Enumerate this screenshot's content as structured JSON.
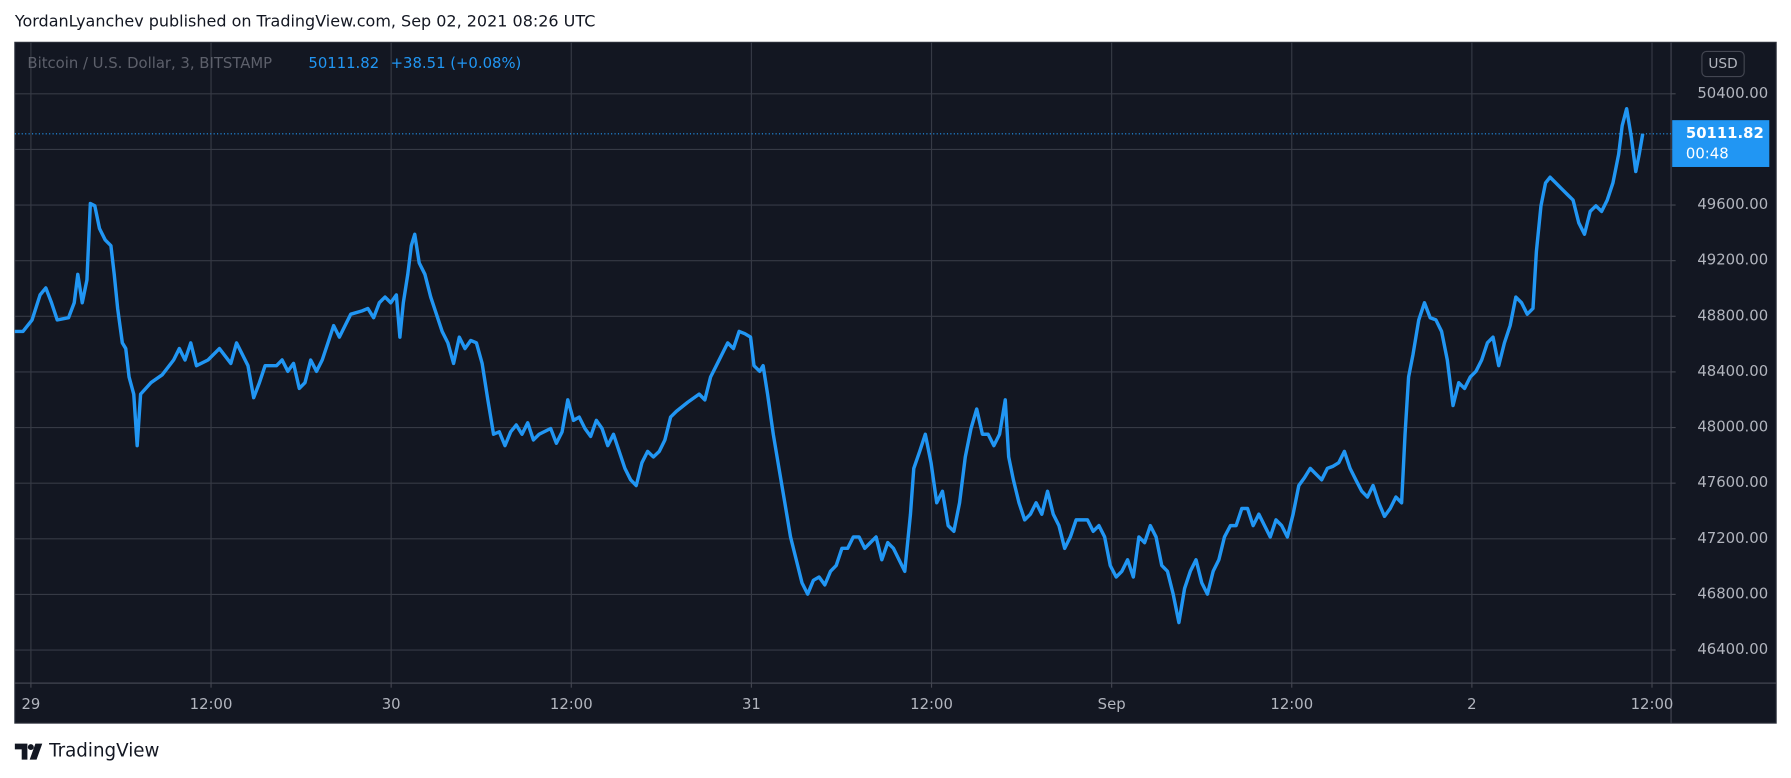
{
  "header": {
    "attribution": "YordanLyanchev published on TradingView.com, Sep 02, 2021 08:26 UTC"
  },
  "chart_data": {
    "type": "line",
    "title": "Bitcoin / U.S. Dollar, 3, BITSTAMP",
    "last_price": 50111.82,
    "change": "+38.51 (+0.08%)",
    "currency": "USD",
    "countdown": "00:48",
    "color": "#2196f3",
    "grid": true,
    "xlim": [
      -1.07,
      109.27
    ],
    "xticks": [
      {
        "value": 0,
        "label": "29"
      },
      {
        "value": 12,
        "label": "12:00"
      },
      {
        "value": 24,
        "label": "30"
      },
      {
        "value": 36,
        "label": "12:00"
      },
      {
        "value": 48,
        "label": "31"
      },
      {
        "value": 60,
        "label": "12:00"
      },
      {
        "value": 72,
        "label": "Sep"
      },
      {
        "value": 84,
        "label": "12:00"
      },
      {
        "value": 96,
        "label": "2"
      },
      {
        "value": 108,
        "label": "12:00"
      }
    ],
    "ylim": [
      46162,
      50770
    ],
    "yticks": [
      {
        "value": 46400,
        "label": "46400.00"
      },
      {
        "value": 46800,
        "label": "46800.00"
      },
      {
        "value": 47200,
        "label": "47200.00"
      },
      {
        "value": 47600,
        "label": "47600.00"
      },
      {
        "value": 48000,
        "label": "48000.00"
      },
      {
        "value": 48400,
        "label": "48400.00"
      },
      {
        "value": 48800,
        "label": "48800.00"
      },
      {
        "value": 49200,
        "label": "49200.00"
      },
      {
        "value": 49600,
        "label": "49600.00"
      },
      {
        "value": 50000,
        "label": "50000.00"
      },
      {
        "value": 50400,
        "label": "50400.00"
      }
    ],
    "x": [
      -1.07,
      -0.53,
      0.08,
      0.61,
      0.99,
      1.37,
      1.75,
      2.51,
      2.89,
      3.12,
      3.42,
      3.73,
      3.96,
      4.26,
      4.57,
      4.95,
      5.33,
      5.55,
      5.78,
      6.09,
      6.32,
      6.54,
      6.85,
      7.08,
      7.31,
      7.99,
      8.75,
      9.51,
      9.89,
      10.27,
      10.65,
      11.03,
      11.8,
      12.56,
      13.32,
      13.7,
      14.08,
      14.46,
      14.84,
      15.22,
      15.6,
      16.36,
      16.74,
      17.12,
      17.5,
      17.88,
      18.26,
      18.64,
      19.03,
      19.41,
      19.79,
      20.17,
      20.55,
      20.93,
      21.31,
      22.07,
      22.45,
      22.83,
      23.21,
      23.59,
      23.97,
      24.35,
      24.58,
      24.81,
      25.11,
      25.34,
      25.57,
      25.87,
      26.25,
      26.64,
      27.02,
      27.4,
      27.78,
      28.16,
      28.54,
      28.92,
      29.3,
      29.68,
      30.06,
      30.44,
      30.82,
      31.2,
      31.58,
      31.96,
      32.34,
      32.72,
      33.1,
      33.48,
      33.86,
      34.63,
      35.01,
      35.39,
      35.77,
      36.15,
      36.53,
      36.91,
      37.29,
      37.67,
      38.05,
      38.43,
      38.81,
      39.19,
      39.57,
      39.95,
      40.33,
      40.71,
      41.09,
      41.47,
      41.86,
      42.24,
      42.62,
      43.0,
      43.76,
      44.52,
      44.9,
      45.28,
      45.66,
      46.04,
      46.42,
      46.8,
      47.18,
      47.56,
      47.94,
      48.17,
      48.55,
      48.78,
      49.08,
      49.46,
      49.84,
      50.23,
      50.61,
      50.99,
      51.37,
      51.75,
      52.13,
      52.51,
      52.89,
      53.27,
      53.65,
      54.03,
      54.41,
      54.79,
      55.17,
      55.55,
      55.93,
      56.31,
      56.69,
      57.08,
      57.46,
      57.84,
      58.22,
      58.6,
      58.82,
      59.21,
      59.59,
      59.97,
      60.35,
      60.73,
      61.11,
      61.49,
      61.87,
      62.25,
      62.63,
      63.01,
      63.39,
      63.77,
      64.15,
      64.53,
      64.91,
      65.14,
      65.45,
      65.83,
      66.21,
      66.59,
      66.97,
      67.35,
      67.73,
      68.11,
      68.49,
      68.87,
      69.25,
      69.63,
      70.39,
      70.77,
      71.15,
      71.53,
      71.91,
      72.3,
      72.68,
      73.06,
      73.44,
      73.82,
      74.2,
      74.58,
      74.96,
      75.34,
      75.72,
      76.1,
      76.48,
      76.86,
      77.24,
      77.62,
      78.0,
      78.38,
      78.76,
      79.14,
      79.52,
      79.91,
      80.29,
      80.67,
      81.05,
      81.43,
      81.81,
      82.19,
      82.57,
      82.95,
      83.33,
      83.71,
      84.09,
      84.47,
      84.85,
      85.23,
      85.61,
      85.99,
      86.37,
      86.75,
      87.13,
      87.51,
      87.89,
      88.27,
      88.66,
      89.04,
      89.42,
      89.8,
      90.18,
      90.56,
      90.94,
      91.32,
      91.55,
      91.78,
      92.08,
      92.46,
      92.84,
      93.22,
      93.6,
      93.98,
      94.36,
      94.74,
      95.12,
      95.51,
      95.89,
      96.27,
      96.65,
      97.03,
      97.41,
      97.79,
      98.17,
      98.55,
      98.93,
      99.31,
      99.69,
      100.07,
      100.3,
      100.6,
      100.91,
      101.21,
      101.59,
      101.97,
      102.35,
      102.74,
      103.12,
      103.5,
      103.88,
      104.26,
      104.64,
      105.02,
      105.4,
      105.78,
      106.01,
      106.31,
      106.62,
      106.92,
      107.15,
      107.38
    ],
    "values": [
      48691,
      48691,
      48774,
      48954,
      49004,
      48897,
      48774,
      48790,
      48897,
      49102,
      48897,
      49061,
      49611,
      49595,
      49431,
      49349,
      49308,
      49102,
      48856,
      48609,
      48568,
      48363,
      48240,
      47870,
      48240,
      48322,
      48379,
      48486,
      48568,
      48486,
      48609,
      48445,
      48486,
      48568,
      48461,
      48609,
      48527,
      48445,
      48215,
      48322,
      48445,
      48445,
      48486,
      48404,
      48461,
      48281,
      48322,
      48486,
      48404,
      48486,
      48609,
      48733,
      48650,
      48733,
      48815,
      48839,
      48856,
      48790,
      48897,
      48938,
      48897,
      48954,
      48650,
      48897,
      49102,
      49308,
      49390,
      49184,
      49102,
      48938,
      48815,
      48691,
      48609,
      48461,
      48650,
      48568,
      48626,
      48609,
      48461,
      48199,
      47952,
      47969,
      47870,
      47969,
      48018,
      47952,
      48034,
      47911,
      47952,
      47993,
      47887,
      47969,
      48199,
      48051,
      48075,
      47993,
      47936,
      48051,
      47993,
      47870,
      47952,
      47829,
      47706,
      47624,
      47583,
      47747,
      47829,
      47788,
      47829,
      47911,
      48075,
      48116,
      48182,
      48240,
      48199,
      48363,
      48445,
      48527,
      48609,
      48568,
      48691,
      48675,
      48650,
      48445,
      48404,
      48445,
      48240,
      47952,
      47706,
      47459,
      47213,
      47049,
      46884,
      46802,
      46901,
      46925,
      46868,
      46966,
      47008,
      47131,
      47131,
      47213,
      47213,
      47131,
      47172,
      47213,
      47049,
      47172,
      47131,
      47049,
      46966,
      47377,
      47706,
      47829,
      47952,
      47747,
      47459,
      47542,
      47295,
      47254,
      47459,
      47788,
      47993,
      48133,
      47952,
      47952,
      47870,
      47952,
      48199,
      47788,
      47624,
      47459,
      47336,
      47377,
      47459,
      47377,
      47542,
      47377,
      47295,
      47131,
      47213,
      47336,
      47336,
      47254,
      47295,
      47213,
      47008,
      46925,
      46966,
      47049,
      46925,
      47213,
      47172,
      47295,
      47213,
      47008,
      46966,
      46802,
      46597,
      46843,
      46966,
      47049,
      46884,
      46802,
      46966,
      47049,
      47213,
      47295,
      47295,
      47418,
      47418,
      47295,
      47377,
      47295,
      47213,
      47336,
      47295,
      47213,
      47377,
      47583,
      47640,
      47706,
      47665,
      47624,
      47706,
      47722,
      47747,
      47829,
      47706,
      47624,
      47542,
      47500,
      47583,
      47459,
      47361,
      47418,
      47500,
      47459,
      47952,
      48363,
      48527,
      48774,
      48897,
      48790,
      48774,
      48691,
      48486,
      48158,
      48322,
      48281,
      48363,
      48404,
      48486,
      48609,
      48650,
      48445,
      48609,
      48733,
      48938,
      48897,
      48815,
      48856,
      49266,
      49595,
      49759,
      49800,
      49759,
      49718,
      49677,
      49636,
      49472,
      49390,
      49554,
      49595,
      49554,
      49636,
      49759,
      49965,
      50170,
      50293,
      50088,
      49841,
      49965,
      50111.82
    ]
  },
  "footer": {
    "brand": "TradingView"
  }
}
